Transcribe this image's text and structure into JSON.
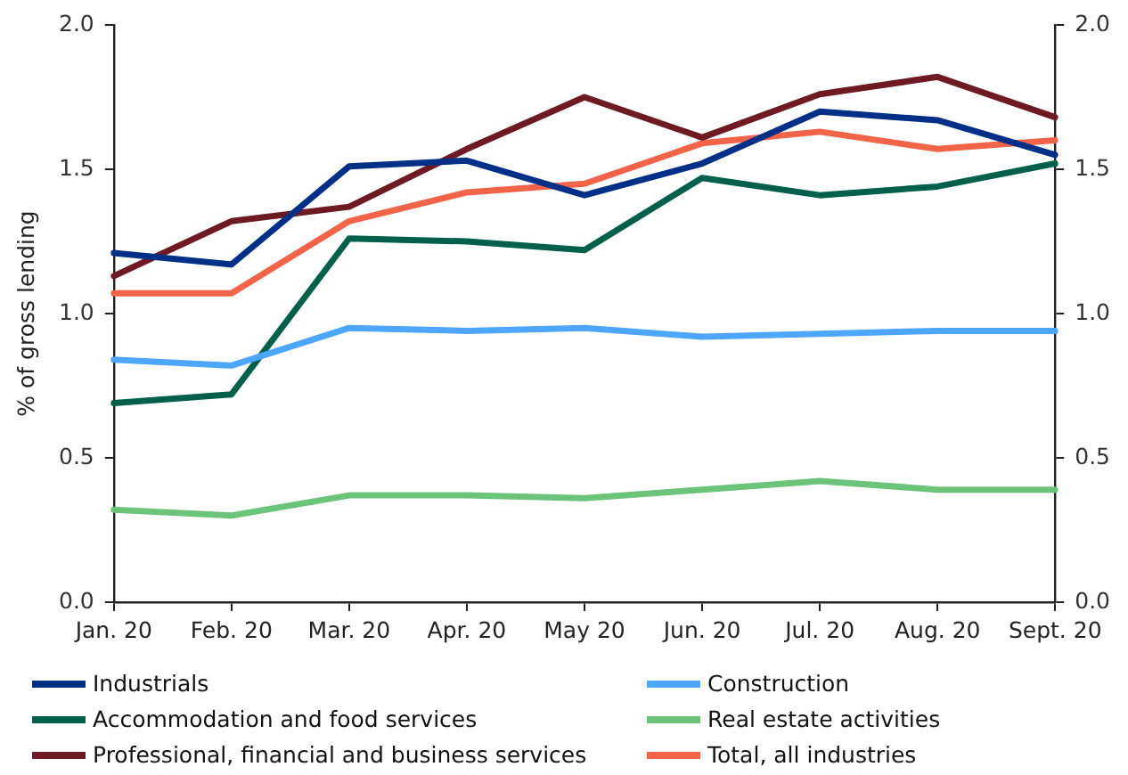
{
  "chart_data": {
    "type": "line",
    "ylabel": "% of gross lending",
    "categories": [
      "Jan. 20",
      "Feb. 20",
      "Mar. 20",
      "Apr. 20",
      "May 20",
      "Jun. 20",
      "Jul. 20",
      "Aug. 20",
      "Sept. 20"
    ],
    "series": [
      {
        "name": "Industrials",
        "color": "#002f87",
        "values": [
          1.21,
          1.17,
          1.51,
          1.53,
          1.41,
          1.52,
          1.7,
          1.67,
          1.55
        ]
      },
      {
        "name": "Construction",
        "color": "#4da6ff",
        "values": [
          0.84,
          0.82,
          0.95,
          0.94,
          0.95,
          0.92,
          0.93,
          0.94,
          0.94
        ]
      },
      {
        "name": "Accommodation and food services",
        "color": "#00604a",
        "values": [
          0.69,
          0.72,
          1.26,
          1.25,
          1.22,
          1.47,
          1.41,
          1.44,
          1.52
        ]
      },
      {
        "name": "Real estate activities",
        "color": "#6cc47a",
        "values": [
          0.32,
          0.3,
          0.37,
          0.37,
          0.36,
          0.39,
          0.42,
          0.39,
          0.39
        ]
      },
      {
        "name": "Professional, financial and business services",
        "color": "#6e1a22",
        "values": [
          1.13,
          1.32,
          1.37,
          1.57,
          1.75,
          1.61,
          1.76,
          1.82,
          1.68
        ]
      },
      {
        "name": "Total, all industries",
        "color": "#f26449",
        "values": [
          1.07,
          1.07,
          1.32,
          1.42,
          1.45,
          1.59,
          1.63,
          1.57,
          1.6
        ]
      }
    ],
    "ylim": [
      0,
      2
    ],
    "yticks": [
      {
        "value": 0,
        "label": "0.0"
      },
      {
        "value": 0.5,
        "label": "0.5"
      },
      {
        "value": 1,
        "label": "1.0"
      },
      {
        "value": 1.5,
        "label": "1.5"
      },
      {
        "value": 2,
        "label": "2.0"
      }
    ],
    "y2lim": [
      0,
      2
    ],
    "y2ticks": [
      {
        "value": 0,
        "label": "0.0"
      },
      {
        "value": 0.5,
        "label": "0.5"
      },
      {
        "value": 1,
        "label": "1.0"
      },
      {
        "value": 1.5,
        "label": "1.5"
      },
      {
        "value": 2,
        "label": "2.0"
      }
    ],
    "grid": false,
    "legend": "bottom",
    "marker": "none",
    "line_style": "solid"
  }
}
